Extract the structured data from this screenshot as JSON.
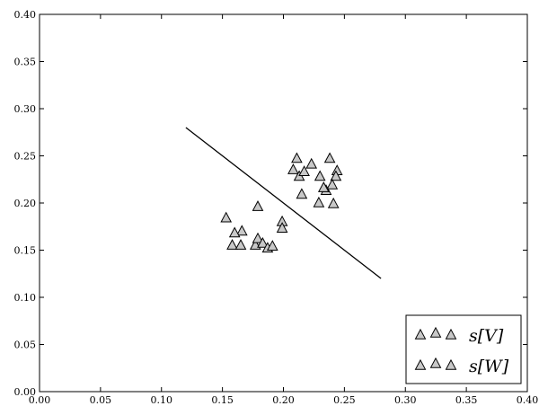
{
  "chart_data": {
    "type": "scatter",
    "xlim": [
      0.0,
      0.4
    ],
    "ylim": [
      0.0,
      0.4
    ],
    "xticks": [
      "0.00",
      "0.05",
      "0.10",
      "0.15",
      "0.20",
      "0.25",
      "0.30",
      "0.35",
      "0.40"
    ],
    "yticks": [
      "0.00",
      "0.05",
      "0.10",
      "0.15",
      "0.20",
      "0.25",
      "0.30",
      "0.35",
      "0.40"
    ],
    "grid": false,
    "legend_position": "bottom-right",
    "marker": "open-triangle",
    "marker_fill": "#c8c8c8",
    "series": [
      {
        "name": "s[V]",
        "points": [
          [
            0.153,
            0.184
          ],
          [
            0.179,
            0.196
          ],
          [
            0.166,
            0.17
          ],
          [
            0.16,
            0.168
          ],
          [
            0.158,
            0.155
          ],
          [
            0.165,
            0.155
          ],
          [
            0.177,
            0.155
          ],
          [
            0.179,
            0.162
          ],
          [
            0.183,
            0.157
          ],
          [
            0.187,
            0.152
          ],
          [
            0.191,
            0.154
          ],
          [
            0.199,
            0.18
          ],
          [
            0.199,
            0.173
          ]
        ]
      },
      {
        "name": "s[W]",
        "points": [
          [
            0.211,
            0.247
          ],
          [
            0.208,
            0.235
          ],
          [
            0.213,
            0.228
          ],
          [
            0.217,
            0.233
          ],
          [
            0.223,
            0.241
          ],
          [
            0.23,
            0.228
          ],
          [
            0.238,
            0.247
          ],
          [
            0.244,
            0.234
          ],
          [
            0.243,
            0.228
          ],
          [
            0.24,
            0.219
          ],
          [
            0.235,
            0.213
          ],
          [
            0.233,
            0.216
          ],
          [
            0.215,
            0.209
          ],
          [
            0.229,
            0.2
          ],
          [
            0.241,
            0.199
          ]
        ]
      }
    ],
    "lines": [
      {
        "x": [
          0.12,
          0.28
        ],
        "y": [
          0.28,
          0.12
        ]
      }
    ]
  }
}
